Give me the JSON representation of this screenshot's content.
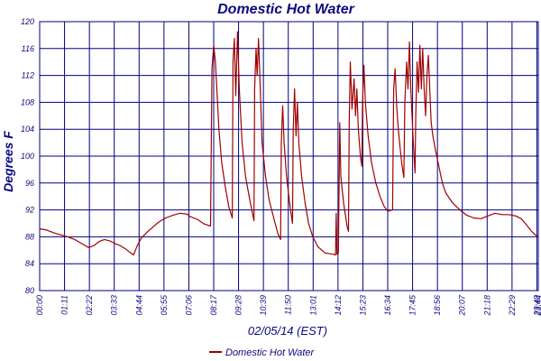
{
  "chart_data": {
    "type": "line",
    "title": "Domestic Hot Water",
    "xlabel": "02/05/14 (EST)",
    "ylabel": "Degrees F",
    "ylim": [
      80,
      120
    ],
    "yticks": [
      80,
      84,
      88,
      92,
      96,
      100,
      104,
      108,
      112,
      116,
      120
    ],
    "xlim": [
      "00:00",
      "23:44"
    ],
    "xticks": [
      "00:00",
      "01:11",
      "02:22",
      "03:33",
      "04:44",
      "05:55",
      "07:06",
      "08:17",
      "09:28",
      "10:39",
      "11:50",
      "13:01",
      "14:12",
      "15:23",
      "16:34",
      "17:45",
      "18:56",
      "20:07",
      "21:18",
      "22:29",
      "23:40",
      "23:44"
    ],
    "grid": true,
    "legend": "bottom",
    "colors": {
      "series": "#a00000",
      "grid": "#000080",
      "text": "#0a0a80"
    },
    "series": [
      {
        "name": "Domestic Hot Water",
        "points": [
          [
            "00:00",
            89.2
          ],
          [
            "00:20",
            89.0
          ],
          [
            "00:40",
            88.6
          ],
          [
            "01:00",
            88.3
          ],
          [
            "01:20",
            88.0
          ],
          [
            "01:40",
            87.6
          ],
          [
            "02:00",
            87.0
          ],
          [
            "02:20",
            86.4
          ],
          [
            "02:35",
            86.7
          ],
          [
            "02:50",
            87.3
          ],
          [
            "03:05",
            87.6
          ],
          [
            "03:20",
            87.4
          ],
          [
            "03:35",
            87.0
          ],
          [
            "03:50",
            86.7
          ],
          [
            "04:05",
            86.2
          ],
          [
            "04:20",
            85.6
          ],
          [
            "04:28",
            85.3
          ],
          [
            "04:38",
            86.6
          ],
          [
            "04:50",
            87.8
          ],
          [
            "05:05",
            88.6
          ],
          [
            "05:20",
            89.3
          ],
          [
            "05:40",
            90.2
          ],
          [
            "06:00",
            90.8
          ],
          [
            "06:20",
            91.2
          ],
          [
            "06:40",
            91.5
          ],
          [
            "07:00",
            91.4
          ],
          [
            "07:10",
            91.0
          ],
          [
            "07:30",
            90.6
          ],
          [
            "07:50",
            89.9
          ],
          [
            "08:08",
            89.6
          ],
          [
            "08:12",
            113.0
          ],
          [
            "08:17",
            116.5
          ],
          [
            "08:22",
            114.0
          ],
          [
            "08:26",
            110.0
          ],
          [
            "08:32",
            104.0
          ],
          [
            "08:40",
            99.0
          ],
          [
            "08:50",
            95.5
          ],
          [
            "09:00",
            92.5
          ],
          [
            "09:10",
            90.8
          ],
          [
            "09:12",
            114.0
          ],
          [
            "09:16",
            117.5
          ],
          [
            "09:20",
            109.0
          ],
          [
            "09:25",
            118.5
          ],
          [
            "09:30",
            110.0
          ],
          [
            "09:38",
            102.0
          ],
          [
            "09:48",
            97.0
          ],
          [
            "10:00",
            93.5
          ],
          [
            "10:12",
            90.4
          ],
          [
            "10:14",
            110.0
          ],
          [
            "10:18",
            116.0
          ],
          [
            "10:21",
            112.0
          ],
          [
            "10:25",
            117.5
          ],
          [
            "10:30",
            110.0
          ],
          [
            "10:35",
            102.0
          ],
          [
            "10:45",
            97.0
          ],
          [
            "10:55",
            93.5
          ],
          [
            "11:10",
            90.5
          ],
          [
            "11:20",
            88.5
          ],
          [
            "11:28",
            87.6
          ],
          [
            "11:30",
            102.0
          ],
          [
            "11:34",
            107.5
          ],
          [
            "11:38",
            102.0
          ],
          [
            "11:45",
            97.0
          ],
          [
            "11:55",
            92.5
          ],
          [
            "12:02",
            90.0
          ],
          [
            "12:04",
            104.0
          ],
          [
            "12:08",
            110.0
          ],
          [
            "12:12",
            103.0
          ],
          [
            "12:16",
            108.0
          ],
          [
            "12:20",
            102.0
          ],
          [
            "12:28",
            97.0
          ],
          [
            "12:38",
            93.0
          ],
          [
            "12:48",
            90.0
          ],
          [
            "13:00",
            88.0
          ],
          [
            "13:15",
            86.5
          ],
          [
            "13:35",
            85.6
          ],
          [
            "14:00",
            85.4
          ],
          [
            "14:05",
            85.3
          ],
          [
            "14:07",
            91.5
          ],
          [
            "14:09",
            85.4
          ],
          [
            "14:13",
            85.6
          ],
          [
            "14:17",
            105.0
          ],
          [
            "14:20",
            97.0
          ],
          [
            "14:28",
            93.0
          ],
          [
            "14:38",
            89.5
          ],
          [
            "14:42",
            88.8
          ],
          [
            "14:44",
            105.0
          ],
          [
            "14:47",
            114.0
          ],
          [
            "14:52",
            107.0
          ],
          [
            "14:58",
            111.5
          ],
          [
            "15:02",
            106.0
          ],
          [
            "15:06",
            110.0
          ],
          [
            "15:10",
            104.0
          ],
          [
            "15:16",
            100.0
          ],
          [
            "15:20",
            98.5
          ],
          [
            "15:22",
            108.0
          ],
          [
            "15:26",
            113.5
          ],
          [
            "15:30",
            108.0
          ],
          [
            "15:38",
            103.0
          ],
          [
            "15:48",
            99.0
          ],
          [
            "16:00",
            96.0
          ],
          [
            "16:12",
            94.0
          ],
          [
            "16:24",
            92.5
          ],
          [
            "16:34",
            91.8
          ],
          [
            "16:48",
            92.0
          ],
          [
            "16:51",
            110.0
          ],
          [
            "16:55",
            113.0
          ],
          [
            "17:00",
            107.0
          ],
          [
            "17:06",
            103.0
          ],
          [
            "17:14",
            99.0
          ],
          [
            "17:20",
            96.8
          ],
          [
            "17:23",
            108.0
          ],
          [
            "17:28",
            114.0
          ],
          [
            "17:32",
            110.0
          ],
          [
            "17:36",
            117.0
          ],
          [
            "17:40",
            110.0
          ],
          [
            "17:46",
            103.0
          ],
          [
            "17:52",
            97.5
          ],
          [
            "17:54",
            106.0
          ],
          [
            "17:58",
            114.0
          ],
          [
            "18:02",
            109.5
          ],
          [
            "18:06",
            116.5
          ],
          [
            "18:10",
            110.0
          ],
          [
            "18:14",
            116.0
          ],
          [
            "18:18",
            110.0
          ],
          [
            "18:22",
            106.0
          ],
          [
            "18:26",
            112.0
          ],
          [
            "18:30",
            115.0
          ],
          [
            "18:34",
            110.0
          ],
          [
            "18:38",
            105.0
          ],
          [
            "18:43",
            103.0
          ],
          [
            "18:50",
            101.0
          ],
          [
            "19:00",
            98.5
          ],
          [
            "19:10",
            96.0
          ],
          [
            "19:20",
            94.5
          ],
          [
            "19:40",
            93.0
          ],
          [
            "20:00",
            92.0
          ],
          [
            "20:20",
            91.2
          ],
          [
            "20:40",
            90.8
          ],
          [
            "21:00",
            90.7
          ],
          [
            "21:20",
            91.1
          ],
          [
            "21:40",
            91.5
          ],
          [
            "22:00",
            91.3
          ],
          [
            "22:20",
            91.3
          ],
          [
            "22:40",
            91.1
          ],
          [
            "22:55",
            90.7
          ],
          [
            "23:10",
            89.8
          ],
          [
            "23:25",
            88.8
          ],
          [
            "23:40",
            88.1
          ],
          [
            "23:44",
            88.0
          ]
        ]
      }
    ]
  }
}
